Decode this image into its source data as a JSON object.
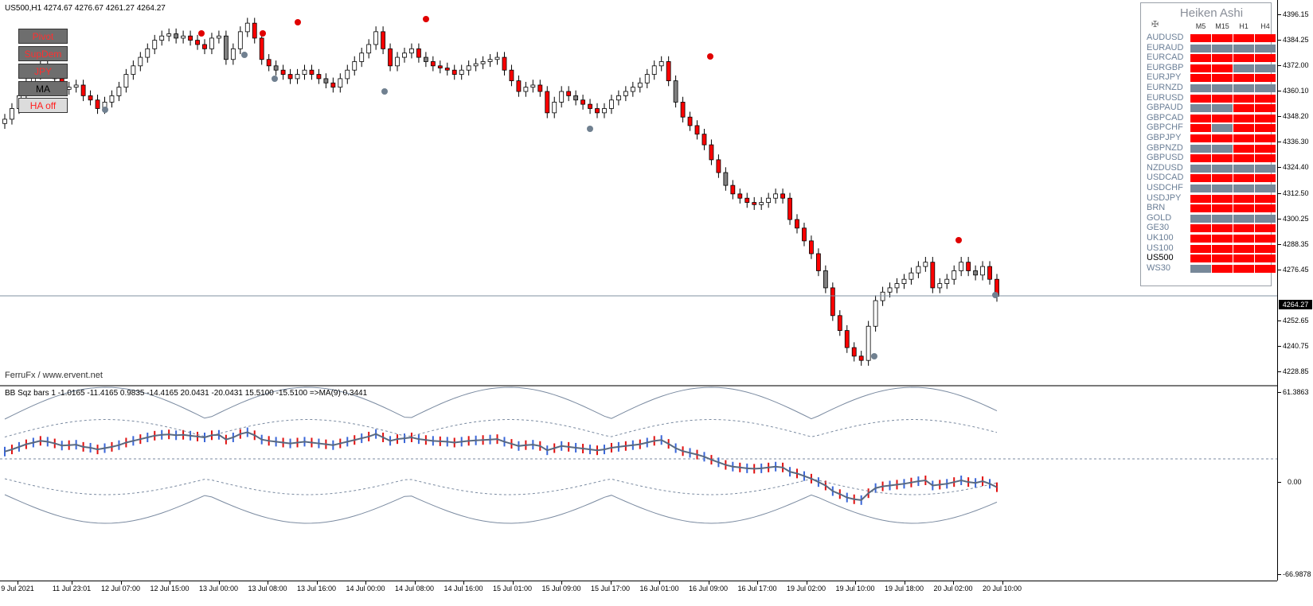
{
  "main_chart": {
    "header": "US500,H1  4274.67 4276.67 4261.27 4264.27",
    "watermark": "FerruFx / www.ervent.net",
    "current_price": "4264.27",
    "price_scale": [
      "4396.15",
      "4384.25",
      "4372.00",
      "4360.10",
      "4348.20",
      "4336.30",
      "4324.40",
      "4312.50",
      "4300.25",
      "4288.35",
      "4276.45",
      "4252.65",
      "4240.75",
      "4228.85"
    ]
  },
  "buttons": {
    "pivot": "Pivot",
    "supdem": "SupDem",
    "jpy": "JPY",
    "ma": "MA",
    "ha_off": "HA off"
  },
  "heiken_ashi": {
    "title": "Heiken Ashi",
    "gear_icon": "settings-icon",
    "timeframes": [
      "M5",
      "M15",
      "H1",
      "H4"
    ],
    "colors": {
      "red": "#ff0000",
      "gray": "#778899"
    },
    "rows": [
      {
        "symbol": "AUDUSD",
        "cells": [
          "red",
          "red",
          "red",
          "red"
        ]
      },
      {
        "symbol": "EURAUD",
        "cells": [
          "gray",
          "gray",
          "gray",
          "gray"
        ]
      },
      {
        "symbol": "EURCAD",
        "cells": [
          "red",
          "red",
          "red",
          "red"
        ]
      },
      {
        "symbol": "EURGBP",
        "cells": [
          "red",
          "red",
          "gray",
          "gray"
        ]
      },
      {
        "symbol": "EURJPY",
        "cells": [
          "red",
          "red",
          "red",
          "red"
        ]
      },
      {
        "symbol": "EURNZD",
        "cells": [
          "gray",
          "gray",
          "gray",
          "gray"
        ]
      },
      {
        "symbol": "EURUSD",
        "cells": [
          "red",
          "red",
          "red",
          "red"
        ]
      },
      {
        "symbol": "GBPAUD",
        "cells": [
          "gray",
          "gray",
          "red",
          "red"
        ]
      },
      {
        "symbol": "GBPCAD",
        "cells": [
          "red",
          "red",
          "red",
          "red"
        ]
      },
      {
        "symbol": "GBPCHF",
        "cells": [
          "red",
          "gray",
          "red",
          "red"
        ]
      },
      {
        "symbol": "GBPJPY",
        "cells": [
          "red",
          "red",
          "red",
          "red"
        ]
      },
      {
        "symbol": "GBPNZD",
        "cells": [
          "gray",
          "gray",
          "red",
          "red"
        ]
      },
      {
        "symbol": "GBPUSD",
        "cells": [
          "red",
          "red",
          "red",
          "red"
        ]
      },
      {
        "symbol": "NZDUSD",
        "cells": [
          "gray",
          "gray",
          "gray",
          "gray"
        ]
      },
      {
        "symbol": "USDCAD",
        "cells": [
          "red",
          "red",
          "red",
          "red"
        ]
      },
      {
        "symbol": "USDCHF",
        "cells": [
          "gray",
          "gray",
          "gray",
          "gray"
        ]
      },
      {
        "symbol": "USDJPY",
        "cells": [
          "red",
          "red",
          "red",
          "red"
        ]
      },
      {
        "symbol": "BRN",
        "cells": [
          "red",
          "red",
          "red",
          "red"
        ]
      },
      {
        "symbol": "GOLD",
        "cells": [
          "gray",
          "gray",
          "gray",
          "gray"
        ]
      },
      {
        "symbol": "GE30",
        "cells": [
          "red",
          "red",
          "red",
          "red"
        ]
      },
      {
        "symbol": "UK100",
        "cells": [
          "red",
          "red",
          "red",
          "red"
        ]
      },
      {
        "symbol": "US100",
        "cells": [
          "red",
          "red",
          "red",
          "red"
        ]
      },
      {
        "symbol": "US500",
        "cells": [
          "red",
          "red",
          "red",
          "red"
        ]
      },
      {
        "symbol": "WS30",
        "cells": [
          "gray",
          "red",
          "red",
          "red"
        ]
      }
    ],
    "selected_symbol": "US500"
  },
  "sub_chart": {
    "header": "BB Sqz bars 1 -1.0165 -11.4165 0.9835 -14.4165 20.0431 -20.0431 15.5100 -15.5100  =>MA(9) 0.3441",
    "scale": {
      "top": "61.3863",
      "zero": "0.00",
      "bottom": "-66.9878"
    }
  },
  "time_axis": [
    "9 Jul 2021",
    "11 Jul 23:01",
    "12 Jul 07:00",
    "12 Jul 15:00",
    "13 Jul 00:00",
    "13 Jul 08:00",
    "13 Jul 16:00",
    "14 Jul 00:00",
    "14 Jul 08:00",
    "14 Jul 16:00",
    "15 Jul 01:00",
    "15 Jul 09:00",
    "15 Jul 17:00",
    "16 Jul 01:00",
    "16 Jul 09:00",
    "16 Jul 17:00",
    "19 Jul 02:00",
    "19 Jul 10:00",
    "19 Jul 18:00",
    "20 Jul 02:00",
    "20 Jul 10:00"
  ],
  "candle_closes": [
    4347,
    4352,
    4358,
    4364,
    4368,
    4372,
    4370,
    4366,
    4361,
    4362,
    4363,
    4358,
    4356,
    4352,
    4355,
    4358,
    4362,
    4368,
    4372,
    4376,
    4380,
    4384,
    4386,
    4387,
    4385,
    4386,
    4384,
    4382,
    4380,
    4385,
    4386,
    4375,
    4380,
    4388,
    4392,
    4385,
    4375,
    4372,
    4370,
    4368,
    4366,
    4368,
    4370,
    4368,
    4366,
    4364,
    4362,
    4366,
    4370,
    4374,
    4378,
    4382,
    4388,
    4380,
    4372,
    4376,
    4378,
    4380,
    4376,
    4374,
    4372,
    4371,
    4370,
    4368,
    4370,
    4372,
    4373,
    4374,
    4375,
    4376,
    4370,
    4365,
    4360,
    4362,
    4363,
    4360,
    4350,
    4355,
    4360,
    4358,
    4356,
    4354,
    4352,
    4350,
    4352,
    4356,
    4358,
    4360,
    4362,
    4364,
    4368,
    4372,
    4374,
    4365,
    4355,
    4348,
    4344,
    4340,
    4335,
    4328,
    4322,
    4316,
    4312,
    4310,
    4308,
    4307,
    4308,
    4310,
    4312,
    4310,
    4300,
    4296,
    4290,
    4284,
    4276,
    4268,
    4255,
    4248,
    4240,
    4236,
    4234,
    4250,
    4262,
    4266,
    4268,
    4270,
    4272,
    4275,
    4278,
    4280,
    4268,
    4270,
    4272,
    4276,
    4280,
    4276,
    4274,
    4278,
    4272,
    4264
  ]
}
